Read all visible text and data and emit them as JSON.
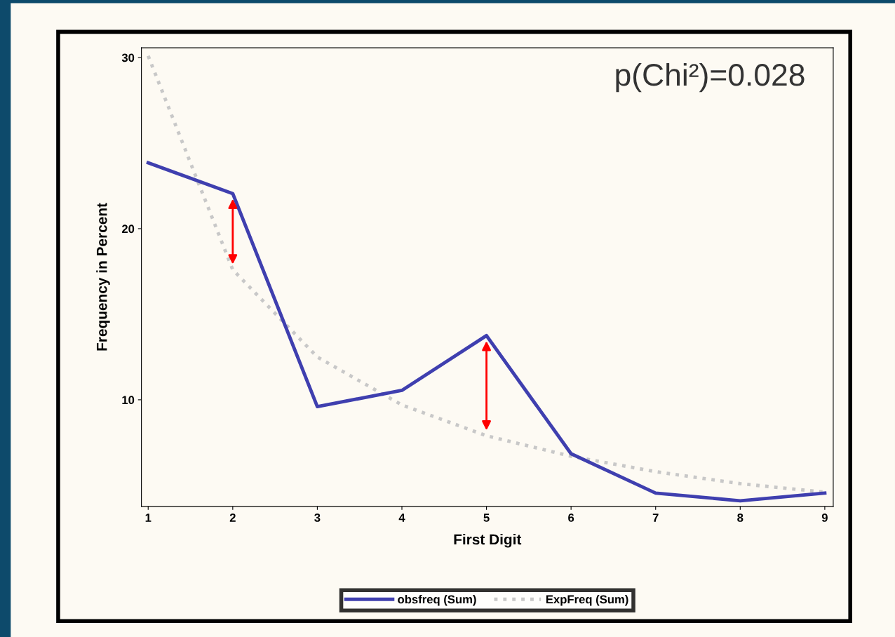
{
  "chart_data": {
    "type": "line",
    "xlabel": "First Digit",
    "ylabel": "Frequency in Percent",
    "x": [
      1,
      2,
      3,
      4,
      5,
      6,
      7,
      8,
      9
    ],
    "series": [
      {
        "name": "obsfreq (Sum)",
        "color": "#3f3faf",
        "line_style": "solid",
        "values": [
          23.85,
          22.05,
          9.6,
          10.55,
          13.75,
          6.85,
          4.55,
          4.1,
          4.55
        ]
      },
      {
        "name": "ExpFreq (Sum)",
        "color": "#c8c8c8",
        "line_style": "dotted",
        "values": [
          30.1,
          17.6,
          12.5,
          9.7,
          7.9,
          6.7,
          5.8,
          5.1,
          4.6
        ]
      }
    ],
    "xlim": [
      0.92,
      9.1
    ],
    "ylim": [
      3.77,
      30.57
    ],
    "xticks": [
      1,
      2,
      3,
      4,
      5,
      6,
      7,
      8,
      9
    ],
    "yticks": [
      10,
      20,
      30
    ],
    "grid": false,
    "legend": "bottom",
    "marker": "none",
    "annotations": [
      "p(Chi²)=0.028"
    ]
  }
}
